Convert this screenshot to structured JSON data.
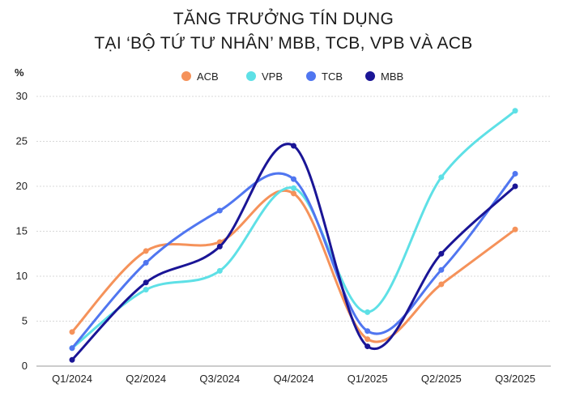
{
  "chart_data": {
    "type": "line",
    "title": "TĂNG TRƯỞNG TÍN DỤNG",
    "subtitle": "TẠI ‘BỘ TỨ TƯ NHÂN’ MBB, TCB, VPB VÀ ACB",
    "ylabel": "%",
    "xlabel": "",
    "categories": [
      "Q1/2024",
      "Q2/2024",
      "Q3/2024",
      "Q4/2024",
      "Q1/2025",
      "Q2/2025",
      "Q3/2025"
    ],
    "ylim": [
      0,
      30
    ],
    "yticks": [
      0,
      5,
      10,
      15,
      20,
      25,
      30
    ],
    "grid": true,
    "legend": "top-center",
    "series": [
      {
        "name": "ACB",
        "color": "#f5925a",
        "values": [
          3.8,
          12.8,
          13.8,
          19.2,
          3.0,
          9.1,
          15.2
        ]
      },
      {
        "name": "VPB",
        "color": "#5ee0e6",
        "values": [
          2.0,
          8.5,
          10.6,
          19.8,
          6.0,
          21.0,
          28.4
        ]
      },
      {
        "name": "TCB",
        "color": "#5076f0",
        "values": [
          2.0,
          11.5,
          17.3,
          20.8,
          3.9,
          10.7,
          21.4
        ]
      },
      {
        "name": "MBB",
        "color": "#1a1596",
        "values": [
          0.7,
          9.3,
          13.3,
          24.5,
          2.2,
          12.5,
          20.0
        ]
      }
    ]
  }
}
